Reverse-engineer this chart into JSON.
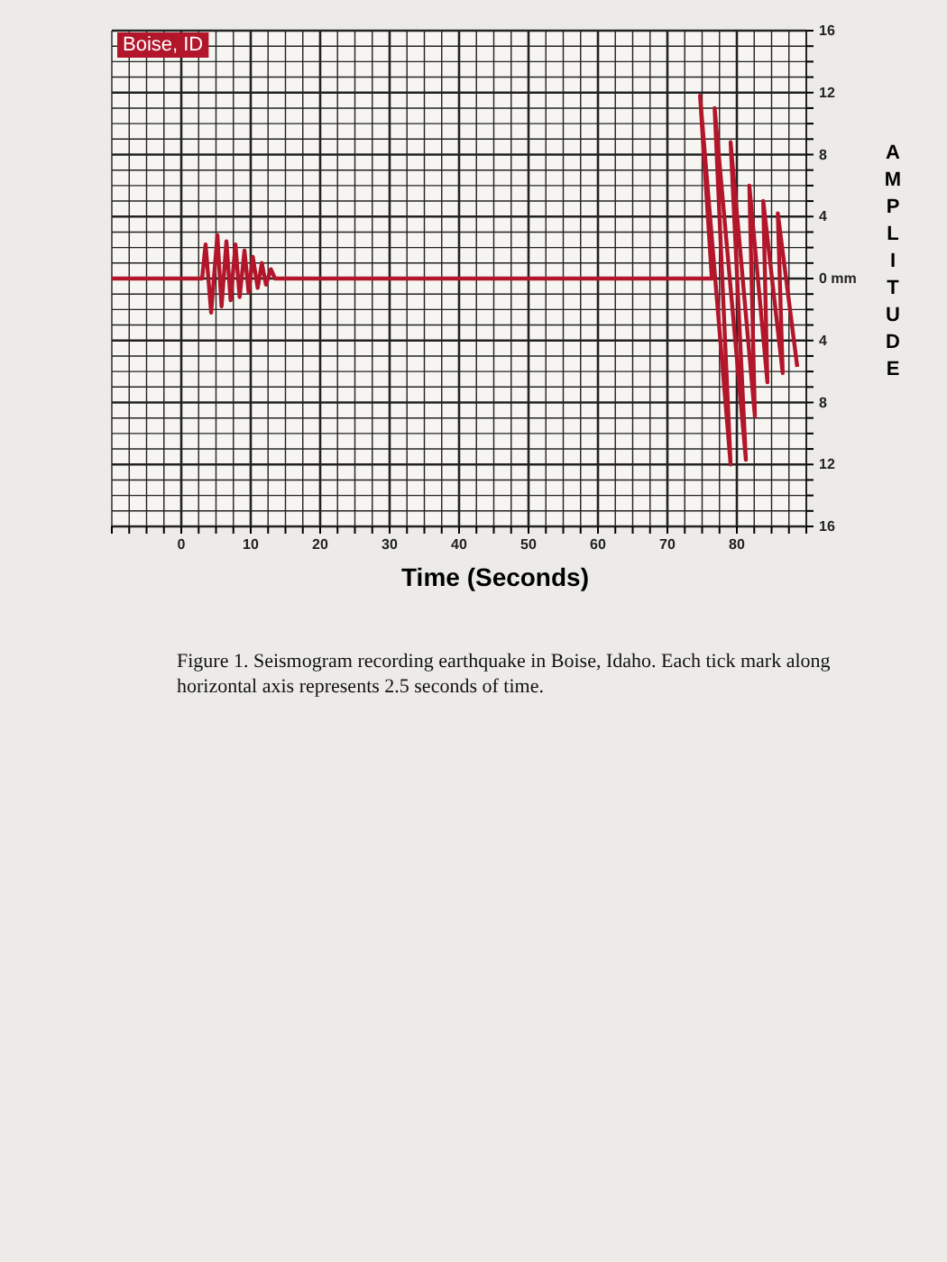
{
  "chart_data": {
    "type": "line",
    "title": "Boise, ID",
    "xlabel": "Time (Seconds)",
    "ylabel": "AMPLITUDE",
    "annotations": [
      "Figure 1. Seismogram recording earthquake in Boise, Idaho. Each tick mark along horizontal axis represents 2.5 seconds of time."
    ],
    "x": [
      -10,
      3.0,
      3.5,
      4.3,
      5.2,
      5.8,
      6.5,
      7.1,
      7.8,
      8.4,
      9.1,
      9.7,
      10.3,
      11.0,
      11.6,
      12.2,
      12.9,
      13.5,
      76.4,
      74.7,
      79.1,
      76.8,
      81.3,
      79.1,
      82.6,
      81.8,
      84.4,
      83.8,
      86.6,
      85.9,
      88.7
    ],
    "series": [
      {
        "color": "#b3162b",
        "values": [
          0,
          0,
          2.2,
          -2.2,
          2.8,
          -1.8,
          2.4,
          -1.4,
          2.2,
          -1.2,
          1.8,
          -0.9,
          1.4,
          -0.6,
          1.0,
          -0.4,
          0.6,
          0,
          0,
          11.8,
          -12,
          11,
          -11.7,
          8.8,
          -8.9,
          6,
          -6.7,
          5,
          -6.1,
          4.2,
          -5.7
        ]
      }
    ],
    "xlim": [
      -10,
      90
    ],
    "xticks": [
      {
        "value": -10,
        "label": null
      },
      {
        "value": -7.5,
        "label": null
      },
      {
        "value": -5,
        "label": null
      },
      {
        "value": -2.5,
        "label": null
      },
      0,
      {
        "value": 2.5,
        "label": null
      },
      {
        "value": 5,
        "label": null
      },
      {
        "value": 7.5,
        "label": null
      },
      10,
      {
        "value": 12.5,
        "label": null
      },
      {
        "value": 15,
        "label": null
      },
      {
        "value": 17.5,
        "label": null
      },
      20,
      {
        "value": 22.5,
        "label": null
      },
      {
        "value": 25,
        "label": null
      },
      {
        "value": 27.5,
        "label": null
      },
      30,
      {
        "value": 32.5,
        "label": null
      },
      {
        "value": 35,
        "label": null
      },
      {
        "value": 37.5,
        "label": null
      },
      40,
      {
        "value": 42.5,
        "label": null
      },
      {
        "value": 45,
        "label": null
      },
      {
        "value": 47.5,
        "label": null
      },
      50,
      {
        "value": 52.5,
        "label": null
      },
      {
        "value": 55,
        "label": null
      },
      {
        "value": 57.5,
        "label": null
      },
      60,
      {
        "value": 62.5,
        "label": null
      },
      {
        "value": 65,
        "label": null
      },
      {
        "value": 67.5,
        "label": null
      },
      70,
      {
        "value": 72.5,
        "label": null
      },
      {
        "value": 75,
        "label": null
      },
      {
        "value": 77.5,
        "label": null
      },
      80,
      {
        "value": 82.5,
        "label": null
      },
      {
        "value": 85,
        "label": null
      },
      {
        "value": 87.5,
        "label": null
      },
      {
        "value": 90,
        "label": null
      }
    ],
    "ylim": [
      -16,
      16
    ],
    "yticks": [
      {
        "value": -16,
        "label": "16"
      },
      {
        "value": -15,
        "label": null
      },
      {
        "value": -14,
        "label": null
      },
      {
        "value": -13,
        "label": null
      },
      {
        "value": -12,
        "label": "12"
      },
      {
        "value": -11,
        "label": null
      },
      {
        "value": -10,
        "label": null
      },
      {
        "value": -9,
        "label": null
      },
      {
        "value": -8,
        "label": "8"
      },
      {
        "value": -7,
        "label": null
      },
      {
        "value": -6,
        "label": null
      },
      {
        "value": -5,
        "label": null
      },
      {
        "value": -4,
        "label": "4"
      },
      {
        "value": -3,
        "label": null
      },
      {
        "value": -2,
        "label": null
      },
      {
        "value": -1,
        "label": null
      },
      {
        "value": 0,
        "label": "0 mm"
      },
      {
        "value": 1,
        "label": null
      },
      {
        "value": 2,
        "label": null
      },
      {
        "value": 3,
        "label": null
      },
      4,
      {
        "value": 5,
        "label": null
      },
      {
        "value": 6,
        "label": null
      },
      {
        "value": 7,
        "label": null
      },
      8,
      {
        "value": 9,
        "label": null
      },
      {
        "value": 10,
        "label": null
      },
      {
        "value": 11,
        "label": null
      },
      12,
      {
        "value": 13,
        "label": null
      },
      {
        "value": 14,
        "label": null
      },
      {
        "value": 15,
        "label": null
      },
      16
    ],
    "grid": true,
    "line_style": "solid"
  }
}
